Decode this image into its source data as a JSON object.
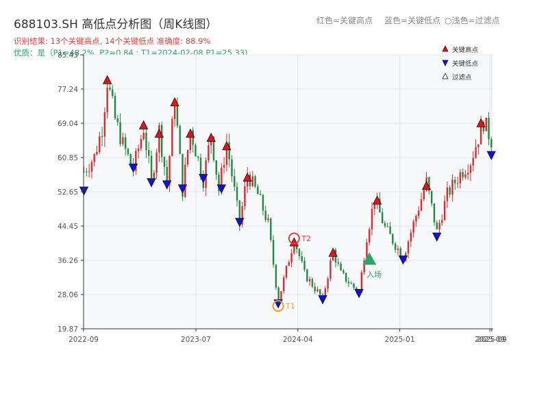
{
  "title": "688103.SH 高低点分析图（周K线图）",
  "header_legend": {
    "red": "红色=关键高点",
    "blue": "蓝色=关键低点",
    "light": "○浅色=过滤点"
  },
  "subtitle_result": "识别结果: 13个关键高点, 14个关键低点  准确度: 88.9%",
  "subtitle_quality": "优质：是（P1=48.2%, P2=0.84 ; T1=2024-02-08 P1=25.33)",
  "colors": {
    "up": "#e0272a",
    "down": "#1f8a3b",
    "high_marker": "#e8101a",
    "low_marker": "#1010e0",
    "t1": "#f0a020",
    "t2": "#e0413e",
    "entry": "#2ca565"
  },
  "chart_data": {
    "type": "candlestick",
    "ylim": [
      19.87,
      85.43
    ],
    "yticks": [
      "19.87",
      "28.06",
      "36.26",
      "44.45",
      "52.65",
      "60.85",
      "69.04",
      "77.24",
      "85.43"
    ],
    "xticks": [
      {
        "label": "2022-09",
        "date": "2022-09-01"
      },
      {
        "label": "2023-07",
        "date": "2023-07-01"
      },
      {
        "label": "2024-04",
        "date": "2024-04-01"
      },
      {
        "label": "2025-01",
        "date": "2025-01-01"
      },
      {
        "label": "2025-09",
        "date": "2025-09-01"
      },
      {
        "label": "2025-09",
        "date": "2025-09-06"
      }
    ],
    "xrange": [
      "2022-09-01",
      "2025-09-10"
    ],
    "grid": true,
    "legend": {
      "position": "top-right",
      "entries": [
        {
          "label": "关键高点",
          "marker": "triangle-up",
          "color": "#e8101a"
        },
        {
          "label": "关键低点",
          "marker": "triangle-down",
          "color": "#1010e0"
        },
        {
          "label": "过滤点",
          "marker": "triangle-up-outline",
          "color": "#333333"
        }
      ]
    },
    "price_path": [
      [
        "2022-09-02",
        57.5
      ],
      [
        "2022-09-30",
        61
      ],
      [
        "2022-10-21",
        68
      ],
      [
        "2022-11-04",
        79.3
      ],
      [
        "2022-11-25",
        70
      ],
      [
        "2022-12-16",
        64
      ],
      [
        "2023-01-13",
        58
      ],
      [
        "2023-02-10",
        68
      ],
      [
        "2023-03-03",
        55
      ],
      [
        "2023-03-24",
        67.5
      ],
      [
        "2023-04-14",
        54.5
      ],
      [
        "2023-05-05",
        75
      ],
      [
        "2023-05-26",
        53
      ],
      [
        "2023-06-16",
        67.5
      ],
      [
        "2023-07-21",
        55.5
      ],
      [
        "2023-08-11",
        66.5
      ],
      [
        "2023-09-01",
        53
      ],
      [
        "2023-09-22",
        64.5
      ],
      [
        "2023-10-27",
        45
      ],
      [
        "2023-11-17",
        57
      ],
      [
        "2023-12-15",
        52
      ],
      [
        "2024-01-12",
        45
      ],
      [
        "2024-02-08",
        26.5
      ],
      [
        "2024-03-01",
        34
      ],
      [
        "2024-03-22",
        41.5
      ],
      [
        "2024-04-19",
        33
      ],
      [
        "2024-06-07",
        27
      ],
      [
        "2024-07-05",
        38.5
      ],
      [
        "2024-07-26",
        33
      ],
      [
        "2024-09-13",
        28.5
      ],
      [
        "2024-10-04",
        42
      ],
      [
        "2024-10-25",
        51
      ],
      [
        "2024-11-22",
        44
      ],
      [
        "2024-12-20",
        40
      ],
      [
        "2025-01-10",
        37
      ],
      [
        "2025-02-14",
        47
      ],
      [
        "2025-03-14",
        55
      ],
      [
        "2025-04-11",
        43
      ],
      [
        "2025-05-09",
        52
      ],
      [
        "2025-06-13",
        57
      ],
      [
        "2025-07-11",
        60
      ],
      [
        "2025-08-15",
        69.5
      ],
      [
        "2025-09-05",
        65
      ]
    ],
    "key_highs": [
      {
        "date": "2022-11-04",
        "price": 79.3
      },
      {
        "date": "2023-02-10",
        "price": 68.5
      },
      {
        "date": "2023-03-24",
        "price": 66.5
      },
      {
        "date": "2023-05-05",
        "price": 74.0
      },
      {
        "date": "2023-06-16",
        "price": 66.5
      },
      {
        "date": "2023-08-11",
        "price": 65.5
      },
      {
        "date": "2023-09-22",
        "price": 63.5
      },
      {
        "date": "2023-11-17",
        "price": 56.0
      },
      {
        "date": "2024-03-22",
        "price": 40.5
      },
      {
        "date": "2024-07-05",
        "price": 38.0
      },
      {
        "date": "2024-11-01",
        "price": 50.5
      },
      {
        "date": "2025-03-14",
        "price": 54.0
      },
      {
        "date": "2025-08-08",
        "price": 69.0
      }
    ],
    "key_lows": [
      {
        "date": "2022-09-02",
        "price": 53.0
      },
      {
        "date": "2023-01-13",
        "price": 58.5
      },
      {
        "date": "2023-03-03",
        "price": 55.0
      },
      {
        "date": "2023-04-14",
        "price": 54.5
      },
      {
        "date": "2023-05-26",
        "price": 53.5
      },
      {
        "date": "2023-07-21",
        "price": 56.0
      },
      {
        "date": "2023-09-08",
        "price": 53.5
      },
      {
        "date": "2023-10-27",
        "price": 45.5
      },
      {
        "date": "2024-02-08",
        "price": 26.0
      },
      {
        "date": "2024-06-07",
        "price": 27.0
      },
      {
        "date": "2024-09-13",
        "price": 28.5
      },
      {
        "date": "2025-01-10",
        "price": 36.5
      },
      {
        "date": "2025-04-11",
        "price": 42.0
      },
      {
        "date": "2025-09-05",
        "price": 61.5
      }
    ],
    "annotations": [
      {
        "label": "T1",
        "date": "2024-02-08",
        "price": 25.33
      },
      {
        "label": "T2",
        "date": "2024-03-22",
        "price": 41.5
      },
      {
        "label": "入场",
        "date": "2024-10-11",
        "price": 36.5
      }
    ]
  }
}
